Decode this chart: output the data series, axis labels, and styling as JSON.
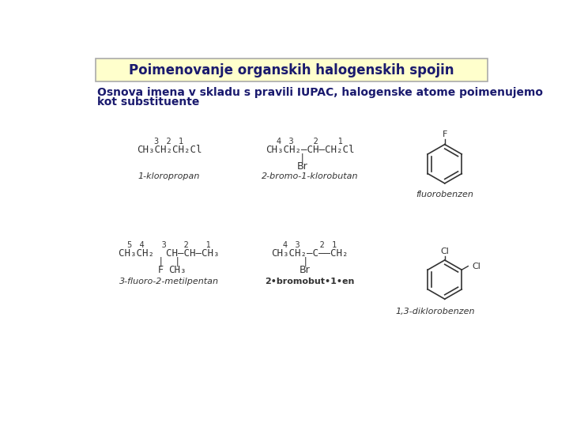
{
  "title": "Poimenovanje organskih halogenskih spojin",
  "subtitle_line1": "Osnova imena v skladu s pravili IUPAC, halogenske atome poimenujemo",
  "subtitle_line2": "kot substituente",
  "background": "#ffffff",
  "title_box_bg": "#ffffcc",
  "title_box_border": "#aaaaaa",
  "title_color": "#1a1a6e",
  "subtitle_color": "#1a1a6e",
  "structure_color": "#333333",
  "label_color": "#555555"
}
